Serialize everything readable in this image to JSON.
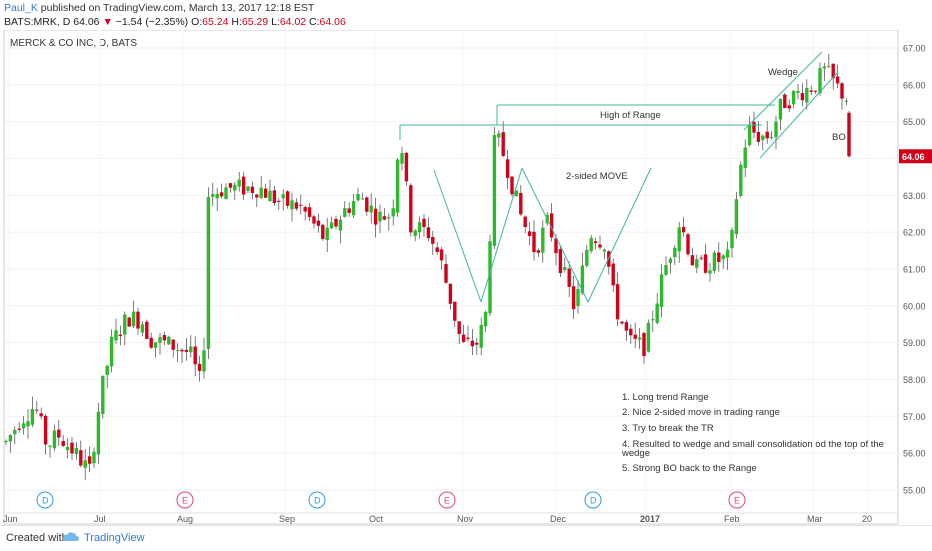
{
  "header": {
    "author": "Paul_K",
    "published_text": " published on TradingView.com, March 13, 2017 12:18 EST",
    "symbol": "BATS:MRK, D",
    "last": "64.06",
    "arrow": "▼",
    "change": "−1.54 (−2.35%)",
    "o_label": "O:",
    "o_val": "65.24",
    "h_label": "H:",
    "h_val": "65.29",
    "l_label": "L:",
    "l_val": "64.02",
    "c_label": "C:",
    "c_val": "64.06"
  },
  "chart_data": {
    "type": "candlestick",
    "title": "MERCK & CO INC, D, BATS",
    "ylim": [
      54.7,
      67.3
    ],
    "y_ticks": [
      "55.00",
      "56.00",
      "57.00",
      "58.00",
      "59.00",
      "60.00",
      "61.00",
      "62.00",
      "63.00",
      "64.00",
      "65.00",
      "66.00",
      "67.00"
    ],
    "x_ticks": [
      "Jun",
      "Jul",
      "Aug",
      "Sep",
      "Oct",
      "Nov",
      "Dec",
      "2017",
      "Feb",
      "Mar",
      "20"
    ],
    "last_price_label": "64.06",
    "annotations": {
      "wedge": "Wedge",
      "high_of_range": "High of Range",
      "two_sided": "2-sided MOVE",
      "bo": "BO"
    },
    "notes": [
      "1. Long trend Range",
      "2. Nice 2-sided move in trading range",
      "3. Try to break the TR",
      "4. Resulted to wedge and small consolidation od the top of the wedge",
      "5. Strong BO back to the Range"
    ],
    "events": [
      "D",
      "E",
      "D",
      "E",
      "D",
      "E"
    ],
    "colors": {
      "up": "#2db82d",
      "down": "#d0021b",
      "lines": "#3fb89a"
    }
  },
  "footer": {
    "created": "Created with",
    "brand": "TradingView"
  }
}
